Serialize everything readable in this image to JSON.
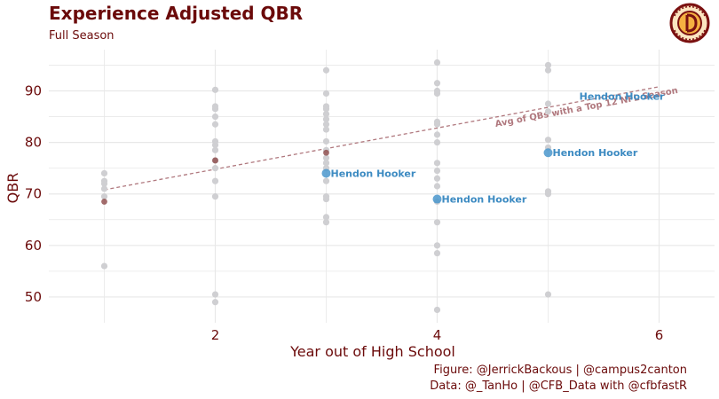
{
  "header": {
    "title": "Experience Adjusted QBR",
    "subtitle": "Full Season"
  },
  "caption": {
    "line1": "Figure: @JerrickBackous | @campus2canton",
    "line2": "Data: @_TanHo | @CFB_Data with @cfbfastR"
  },
  "logo": {
    "icon": "campus2canton-logo",
    "colors": [
      "#7a1010",
      "#f5b041",
      "#fbe5c0"
    ]
  },
  "colors": {
    "title": "#6b0a0a",
    "point": "#cfcfd2",
    "highlight": "#4a97cc",
    "top12": "#8c4848",
    "reference_line": "#b0787e",
    "grid": "#e8e8e8"
  },
  "chart_data": {
    "type": "scatter",
    "title": "Experience Adjusted QBR",
    "subtitle": "Full Season",
    "xlabel": "Year out of High School",
    "ylabel": "QBR",
    "xlim": [
      0.5,
      6.5
    ],
    "ylim": [
      45,
      98
    ],
    "xticks": [
      2,
      4,
      6
    ],
    "yticks": [
      50,
      60,
      70,
      80,
      90
    ],
    "grid": true,
    "series": [
      {
        "role": "other",
        "points": [
          [
            1,
            74
          ],
          [
            1,
            72.5
          ],
          [
            1,
            72
          ],
          [
            1,
            71
          ],
          [
            1,
            69.5
          ],
          [
            1,
            56
          ],
          [
            2,
            90.2
          ],
          [
            2,
            87
          ],
          [
            2,
            86.5
          ],
          [
            2,
            85
          ],
          [
            2,
            83.5
          ],
          [
            2,
            80.2
          ],
          [
            2,
            79.5
          ],
          [
            2,
            78.5
          ],
          [
            2,
            76.5
          ],
          [
            2,
            75
          ],
          [
            2,
            72.5
          ],
          [
            2,
            69.5
          ],
          [
            2,
            50.5
          ],
          [
            2,
            49
          ],
          [
            3,
            94
          ],
          [
            3,
            89.5
          ],
          [
            3,
            87
          ],
          [
            3,
            86.5
          ],
          [
            3,
            85.5
          ],
          [
            3,
            84.5
          ],
          [
            3,
            83.5
          ],
          [
            3,
            82.5
          ],
          [
            3,
            80.2
          ],
          [
            3,
            78.5
          ],
          [
            3,
            77
          ],
          [
            3,
            76
          ],
          [
            3,
            75
          ],
          [
            3,
            72.5
          ],
          [
            3,
            69.5
          ],
          [
            3,
            69
          ],
          [
            3,
            65.5
          ],
          [
            3,
            64.5
          ],
          [
            4,
            95.5
          ],
          [
            4,
            91.5
          ],
          [
            4,
            90
          ],
          [
            4,
            89.5
          ],
          [
            4,
            84
          ],
          [
            4,
            83.5
          ],
          [
            4,
            81.5
          ],
          [
            4,
            80
          ],
          [
            4,
            76
          ],
          [
            4,
            74.5
          ],
          [
            4,
            73
          ],
          [
            4,
            71.5
          ],
          [
            4,
            68.5
          ],
          [
            4,
            64.5
          ],
          [
            4,
            60
          ],
          [
            4,
            58.5
          ],
          [
            4,
            47.5
          ],
          [
            5,
            95
          ],
          [
            5,
            94
          ],
          [
            5,
            87.5
          ],
          [
            5,
            86
          ],
          [
            5,
            80.5
          ],
          [
            5,
            79
          ],
          [
            5,
            70.5
          ],
          [
            5,
            70
          ],
          [
            5,
            50.5
          ]
        ]
      },
      {
        "role": "top12",
        "points": [
          [
            1,
            68.5
          ],
          [
            2,
            76.5
          ],
          [
            3,
            78
          ]
        ]
      },
      {
        "role": "highlight",
        "label": "Hendon Hooker",
        "points": [
          [
            3,
            74
          ],
          [
            4,
            69
          ],
          [
            5,
            78
          ],
          [
            6,
            89
          ]
        ]
      }
    ],
    "reference_line": {
      "label": "Avg of QBs with a Top 12 NFL Season",
      "x": [
        1,
        6
      ],
      "y": [
        70.8,
        90.8
      ]
    }
  }
}
